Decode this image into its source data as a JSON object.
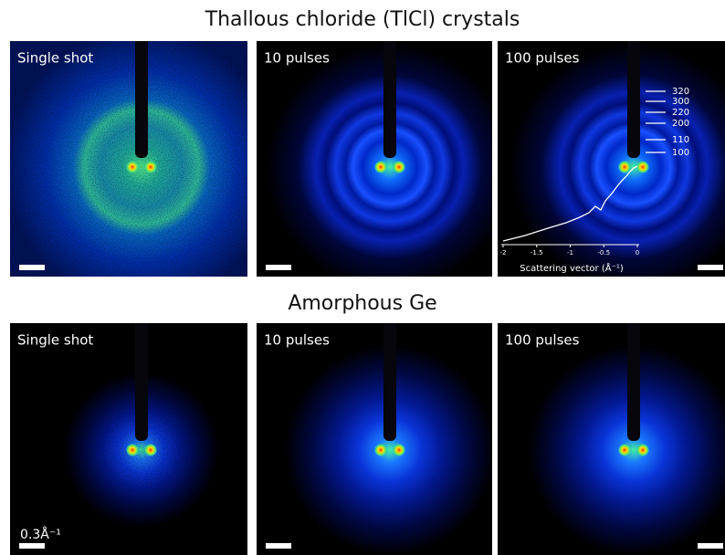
{
  "sections": [
    {
      "title": "Thallous chloride (TlCl) crystals",
      "panels": [
        {
          "label": "Single shot"
        },
        {
          "label": "10 pulses"
        },
        {
          "label": "100 pulses"
        }
      ]
    },
    {
      "title": "Amorphous Ge",
      "panels": [
        {
          "label": "Single shot"
        },
        {
          "label": "10 pulses"
        },
        {
          "label": "100 pulses"
        }
      ]
    }
  ],
  "inset": {
    "ring_labels": [
      "320",
      "300",
      "220",
      "200",
      "110",
      "100"
    ],
    "xticks": [
      -2,
      -1.5,
      -1,
      -0.5,
      0
    ],
    "xlim": [
      -2,
      0
    ],
    "xlabel": "Scattering vector (Å⁻¹)"
  },
  "scale_bar_label": "0.3Å⁻¹"
}
